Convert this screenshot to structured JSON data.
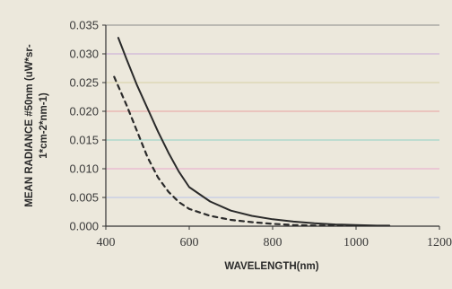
{
  "chart_data": {
    "type": "line",
    "title": "",
    "xlabel": "WAVELENGTH(nm)",
    "ylabel_line1": "MEAN RADIANCE #50nm (uW*sr-",
    "ylabel_line2": "1*cm-2*nm-1)",
    "xlim": [
      400,
      1200
    ],
    "ylim": [
      0,
      0.035
    ],
    "x_ticks": [
      "400",
      "600",
      "800",
      "1000",
      "1200"
    ],
    "y_ticks": [
      "0.000",
      "0.005",
      "0.010",
      "0.015",
      "0.020",
      "0.025",
      "0.030",
      "0.035"
    ],
    "gridline_colors": [
      "#b8c2e8",
      "#e8a8cc",
      "#8fd0c4",
      "#e8a0a0",
      "#d6cfa4",
      "#c8a8d8",
      "#8a8a8a"
    ],
    "series": [
      {
        "style": "solid",
        "x": [
          430,
          450,
          475,
          500,
          525,
          550,
          575,
          600,
          650,
          700,
          750,
          800,
          850,
          900,
          950,
          1000,
          1050,
          1080
        ],
        "y": [
          0.0328,
          0.029,
          0.0245,
          0.0205,
          0.0165,
          0.0128,
          0.0095,
          0.0068,
          0.0043,
          0.0027,
          0.0018,
          0.0012,
          0.0008,
          0.0005,
          0.0003,
          0.0002,
          0.0001,
          0.0001
        ]
      },
      {
        "style": "dashed",
        "x": [
          420,
          450,
          475,
          500,
          525,
          550,
          575,
          600,
          650,
          700,
          750,
          800,
          850,
          900,
          950,
          1000
        ],
        "y": [
          0.026,
          0.021,
          0.0165,
          0.012,
          0.0085,
          0.006,
          0.0042,
          0.003,
          0.0018,
          0.0011,
          0.0007,
          0.0004,
          0.0002,
          0.0001,
          0.0001,
          0.0001
        ]
      }
    ]
  }
}
